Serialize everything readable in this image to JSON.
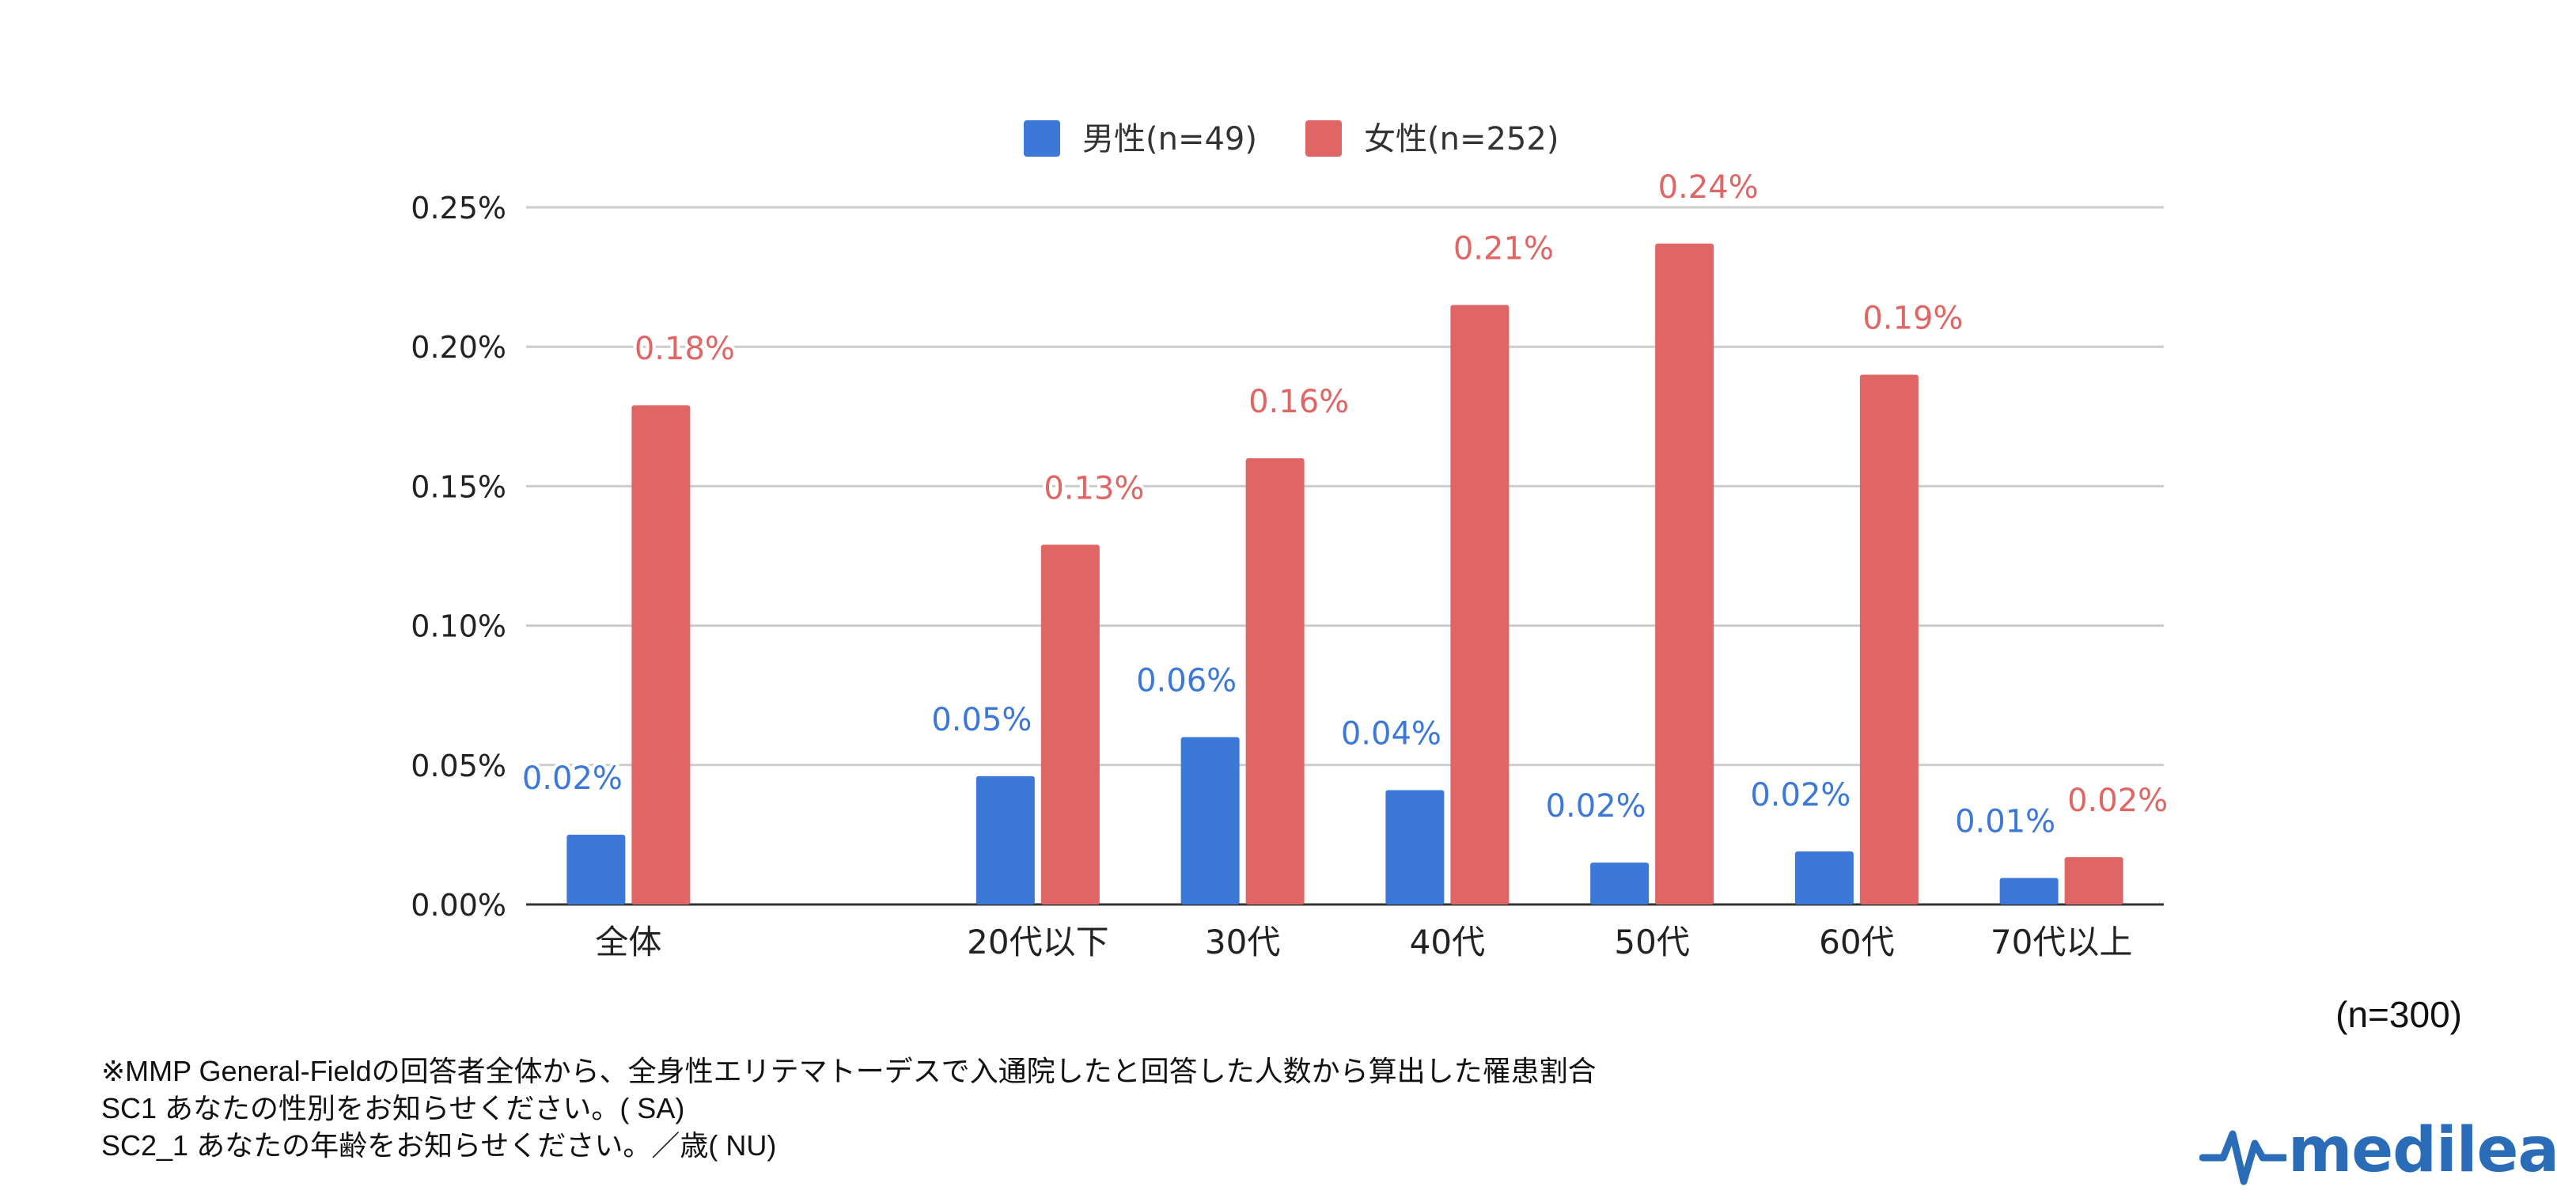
{
  "chart_data": {
    "type": "bar",
    "categories": [
      "全体",
      "",
      "20代以下",
      "30代",
      "40代",
      "50代",
      "60代",
      "70代以上"
    ],
    "series": [
      {
        "name": "男性(n=49)",
        "color": "#3c78d8",
        "values": [
          0.025,
          null,
          0.046,
          0.06,
          0.041,
          0.015,
          0.019,
          0.0095
        ],
        "labels": [
          "0.02%",
          "",
          "0.05%",
          "0.06%",
          "0.04%",
          "0.02%",
          "0.02%",
          "0.01%"
        ]
      },
      {
        "name": "女性(n=252)",
        "color": "#e06666",
        "values": [
          0.179,
          null,
          0.129,
          0.16,
          0.215,
          0.237,
          0.19,
          0.017
        ],
        "labels": [
          "0.18%",
          "",
          "0.13%",
          "0.16%",
          "0.21%",
          "0.24%",
          "0.19%",
          "0.02%"
        ]
      }
    ],
    "yticks": [
      "0.00%",
      "0.05%",
      "0.10%",
      "0.15%",
      "0.20%",
      "0.25%"
    ],
    "ylim": [
      0,
      0.25
    ],
    "grid": true,
    "legend_position": "top-center",
    "xlabel": "",
    "ylabel": ""
  },
  "sample_size": "(n=300)",
  "footnotes": [
    "※MMP General-Fieldの回答者全体から、全身性エリテマトーデスで入通院したと回答した人数から算出した罹患割合",
    "SC1  あなたの性別をお知らせください。( SA)",
    "SC2_1  あなたの年齢をお知らせください。／歳( NU)"
  ],
  "logo": {
    "text": "medilead",
    "color": "#2b6cb8"
  }
}
